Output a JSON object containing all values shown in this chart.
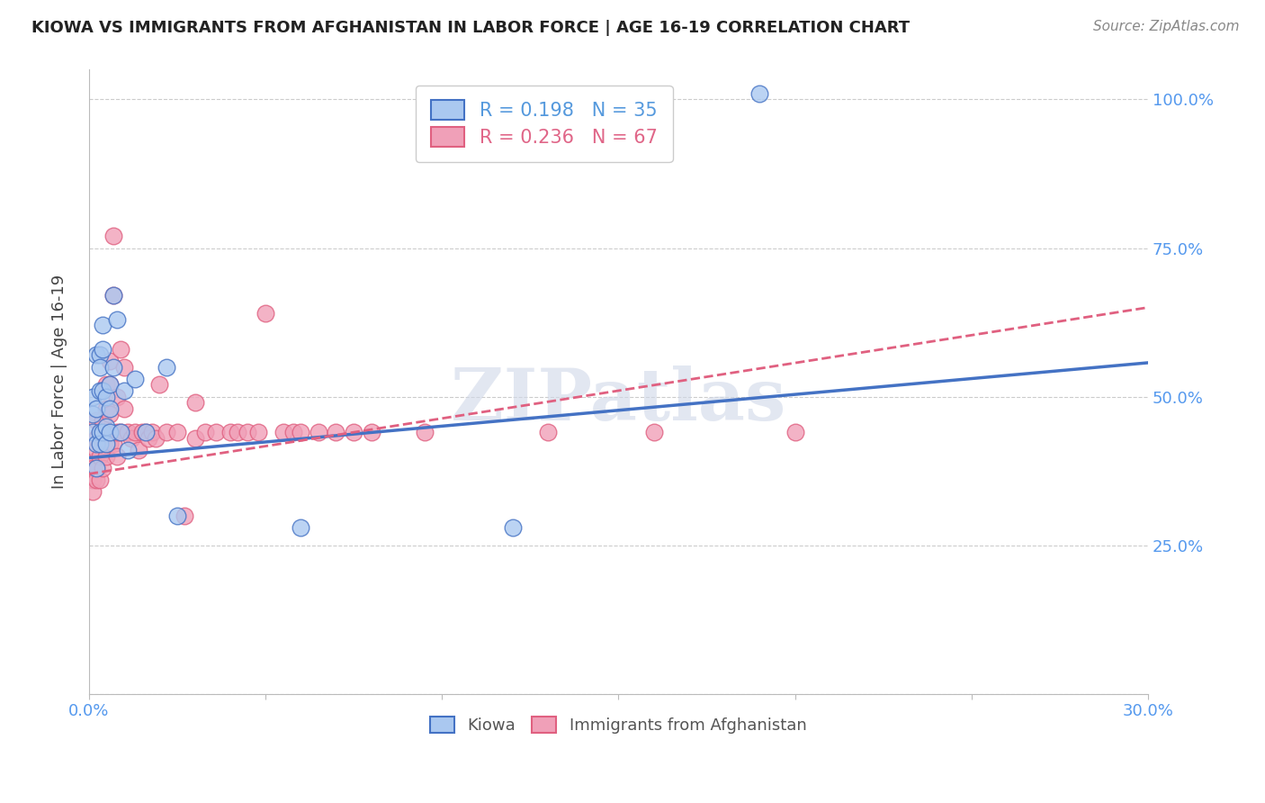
{
  "title": "KIOWA VS IMMIGRANTS FROM AFGHANISTAN IN LABOR FORCE | AGE 16-19 CORRELATION CHART",
  "source": "Source: ZipAtlas.com",
  "ylabel": "In Labor Force | Age 16-19",
  "xlim": [
    0.0,
    0.3
  ],
  "ylim": [
    0.0,
    1.05
  ],
  "xticks": [
    0.0,
    0.05,
    0.1,
    0.15,
    0.2,
    0.25,
    0.3
  ],
  "xticklabels": [
    "0.0%",
    "",
    "",
    "",
    "",
    "",
    "30.0%"
  ],
  "ytick_positions": [
    0.0,
    0.25,
    0.5,
    0.75,
    1.0
  ],
  "yticklabels": [
    "",
    "25.0%",
    "50.0%",
    "75.0%",
    "100.0%"
  ],
  "legend1_label": "R = 0.198   N = 35",
  "legend2_label": "R = 0.236   N = 67",
  "legend_label1_color": "#5599dd",
  "legend_label2_color": "#e06688",
  "bottom_legend1": "Kiowa",
  "bottom_legend2": "Immigrants from Afghanistan",
  "kiowa_color": "#aac8f0",
  "afghanistan_color": "#f0a0b8",
  "kiowa_line_color": "#4472C4",
  "afghanistan_line_color": "#E06080",
  "watermark": "ZIPatlas",
  "kiowa_line": [
    0.0,
    0.397,
    0.3,
    0.557
  ],
  "afghanistan_line": [
    0.0,
    0.37,
    0.3,
    0.65
  ],
  "kiowa_x": [
    0.001,
    0.001,
    0.001,
    0.002,
    0.002,
    0.002,
    0.002,
    0.003,
    0.003,
    0.003,
    0.003,
    0.003,
    0.004,
    0.004,
    0.004,
    0.004,
    0.005,
    0.005,
    0.005,
    0.006,
    0.006,
    0.006,
    0.007,
    0.007,
    0.008,
    0.009,
    0.01,
    0.011,
    0.013,
    0.016,
    0.022,
    0.025,
    0.06,
    0.12,
    0.19
  ],
  "kiowa_y": [
    0.47,
    0.5,
    0.44,
    0.57,
    0.48,
    0.42,
    0.38,
    0.57,
    0.55,
    0.51,
    0.44,
    0.42,
    0.62,
    0.58,
    0.51,
    0.44,
    0.5,
    0.45,
    0.42,
    0.52,
    0.48,
    0.44,
    0.67,
    0.55,
    0.63,
    0.44,
    0.51,
    0.41,
    0.53,
    0.44,
    0.55,
    0.3,
    0.28,
    0.28,
    1.01
  ],
  "afghanistan_x": [
    0.001,
    0.001,
    0.001,
    0.001,
    0.002,
    0.002,
    0.002,
    0.002,
    0.002,
    0.003,
    0.003,
    0.003,
    0.003,
    0.004,
    0.004,
    0.004,
    0.005,
    0.005,
    0.005,
    0.005,
    0.006,
    0.006,
    0.006,
    0.006,
    0.007,
    0.007,
    0.007,
    0.008,
    0.008,
    0.008,
    0.009,
    0.009,
    0.01,
    0.01,
    0.011,
    0.012,
    0.013,
    0.014,
    0.015,
    0.016,
    0.017,
    0.018,
    0.019,
    0.02,
    0.022,
    0.025,
    0.027,
    0.03,
    0.03,
    0.033,
    0.036,
    0.04,
    0.042,
    0.045,
    0.048,
    0.05,
    0.055,
    0.058,
    0.06,
    0.065,
    0.07,
    0.075,
    0.08,
    0.095,
    0.13,
    0.16,
    0.2
  ],
  "afghanistan_y": [
    0.39,
    0.38,
    0.36,
    0.34,
    0.46,
    0.43,
    0.41,
    0.38,
    0.36,
    0.44,
    0.42,
    0.4,
    0.36,
    0.46,
    0.43,
    0.38,
    0.52,
    0.48,
    0.44,
    0.4,
    0.56,
    0.52,
    0.47,
    0.42,
    0.77,
    0.67,
    0.42,
    0.5,
    0.44,
    0.4,
    0.58,
    0.44,
    0.55,
    0.48,
    0.44,
    0.43,
    0.44,
    0.41,
    0.44,
    0.44,
    0.43,
    0.44,
    0.43,
    0.52,
    0.44,
    0.44,
    0.3,
    0.49,
    0.43,
    0.44,
    0.44,
    0.44,
    0.44,
    0.44,
    0.44,
    0.64,
    0.44,
    0.44,
    0.44,
    0.44,
    0.44,
    0.44,
    0.44,
    0.44,
    0.44,
    0.44,
    0.44
  ]
}
